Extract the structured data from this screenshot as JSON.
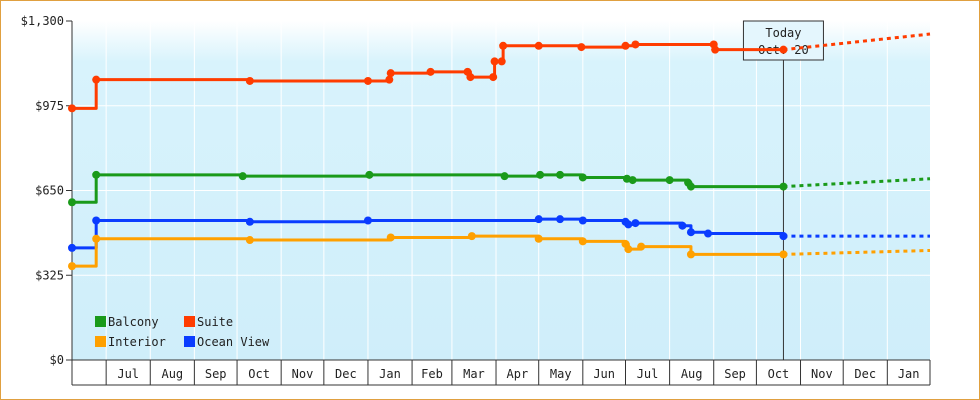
{
  "chart_data": {
    "type": "line",
    "title": "",
    "xlabel": "",
    "ylabel": "",
    "ylim": [
      0,
      1300
    ],
    "y_ticks": [
      "$0",
      "$325",
      "$650",
      "$975",
      "$1,300"
    ],
    "x_ticks": [
      "Jul",
      "Aug",
      "Sep",
      "Oct",
      "Nov",
      "Dec",
      "Jan",
      "Feb",
      "Mar",
      "Apr",
      "May",
      "Jun",
      "Jul",
      "Aug",
      "Sep",
      "Oct",
      "Nov",
      "Dec",
      "Jan"
    ],
    "x_range": [
      "2024-06-07",
      "2026-01-31"
    ],
    "grid": true,
    "legend_position": "bottom-left",
    "today": {
      "line1": "Today",
      "line2": "Oct. 20",
      "date": "2025-10-20"
    },
    "colors": {
      "Balcony": "#1a9a1a",
      "Suite": "#ff3c00",
      "Interior": "#ffa000",
      "Ocean View": "#0a3cff",
      "plot_bg_top": "#ffffff",
      "plot_bg_bottom": "#cfeefa",
      "grid": "#ffffff",
      "axis": "#333333"
    },
    "legend": [
      {
        "name": "Balcony",
        "color": "#1a9a1a"
      },
      {
        "name": "Suite",
        "color": "#ff3c00"
      },
      {
        "name": "Interior",
        "color": "#ffa000"
      },
      {
        "name": "Ocean View",
        "color": "#0a3cff"
      }
    ],
    "series": [
      {
        "name": "Suite",
        "points": [
          [
            "2024-06-07",
            965
          ],
          [
            "2024-06-23",
            965
          ],
          [
            "2024-06-24",
            1075
          ],
          [
            "2024-10-10",
            1070
          ],
          [
            "2025-01-01",
            1070
          ],
          [
            "2025-01-16",
            1075
          ],
          [
            "2025-01-17",
            1100
          ],
          [
            "2025-02-14",
            1105
          ],
          [
            "2025-03-12",
            1105
          ],
          [
            "2025-03-14",
            1085
          ],
          [
            "2025-03-30",
            1085
          ],
          [
            "2025-03-31",
            1145
          ],
          [
            "2025-04-05",
            1145
          ],
          [
            "2025-04-06",
            1205
          ],
          [
            "2025-05-01",
            1205
          ],
          [
            "2025-05-31",
            1200
          ],
          [
            "2025-07-01",
            1205
          ],
          [
            "2025-07-08",
            1210
          ],
          [
            "2025-09-01",
            1210
          ],
          [
            "2025-09-02",
            1190
          ],
          [
            "2025-10-20",
            1190
          ]
        ],
        "projection": [
          [
            "2025-10-20",
            1190
          ],
          [
            "2026-01-31",
            1250
          ]
        ]
      },
      {
        "name": "Balcony",
        "points": [
          [
            "2024-06-07",
            605
          ],
          [
            "2024-06-23",
            605
          ],
          [
            "2024-06-24",
            710
          ],
          [
            "2024-08-25",
            710
          ],
          [
            "2024-10-05",
            705
          ],
          [
            "2025-01-01",
            705
          ],
          [
            "2025-01-02",
            710
          ],
          [
            "2025-03-29",
            710
          ],
          [
            "2025-04-07",
            705
          ],
          [
            "2025-05-02",
            710
          ],
          [
            "2025-05-16",
            710
          ],
          [
            "2025-06-01",
            700
          ],
          [
            "2025-07-02",
            695
          ],
          [
            "2025-07-06",
            690
          ],
          [
            "2025-08-01",
            690
          ],
          [
            "2025-08-14",
            680
          ],
          [
            "2025-08-16",
            665
          ],
          [
            "2025-09-05",
            665
          ],
          [
            "2025-10-20",
            665
          ]
        ],
        "projection": [
          [
            "2025-10-20",
            665
          ],
          [
            "2026-01-31",
            695
          ]
        ]
      },
      {
        "name": "Ocean View",
        "points": [
          [
            "2024-06-07",
            430
          ],
          [
            "2024-06-23",
            430
          ],
          [
            "2024-06-24",
            535
          ],
          [
            "2024-08-25",
            535
          ],
          [
            "2024-10-10",
            530
          ],
          [
            "2024-11-22",
            530
          ],
          [
            "2025-01-01",
            535
          ],
          [
            "2025-05-01",
            540
          ],
          [
            "2025-05-16",
            540
          ],
          [
            "2025-06-01",
            535
          ],
          [
            "2025-07-01",
            530
          ],
          [
            "2025-07-03",
            520
          ],
          [
            "2025-07-08",
            525
          ],
          [
            "2025-07-25",
            525
          ],
          [
            "2025-08-10",
            515
          ],
          [
            "2025-08-16",
            490
          ],
          [
            "2025-08-28",
            485
          ],
          [
            "2025-10-20",
            475
          ]
        ],
        "projection": [
          [
            "2025-10-20",
            475
          ],
          [
            "2026-01-31",
            475
          ]
        ]
      },
      {
        "name": "Interior",
        "points": [
          [
            "2024-06-07",
            360
          ],
          [
            "2024-06-23",
            360
          ],
          [
            "2024-06-24",
            465
          ],
          [
            "2024-08-25",
            465
          ],
          [
            "2024-10-10",
            460
          ],
          [
            "2025-01-01",
            460
          ],
          [
            "2025-01-17",
            470
          ],
          [
            "2025-03-15",
            475
          ],
          [
            "2025-05-01",
            465
          ],
          [
            "2025-06-01",
            455
          ],
          [
            "2025-07-01",
            445
          ],
          [
            "2025-07-03",
            425
          ],
          [
            "2025-07-12",
            435
          ],
          [
            "2025-08-14",
            435
          ],
          [
            "2025-08-16",
            405
          ],
          [
            "2025-09-05",
            405
          ],
          [
            "2025-10-20",
            405
          ]
        ],
        "projection": [
          [
            "2025-10-20",
            405
          ],
          [
            "2026-01-31",
            420
          ]
        ]
      }
    ]
  }
}
